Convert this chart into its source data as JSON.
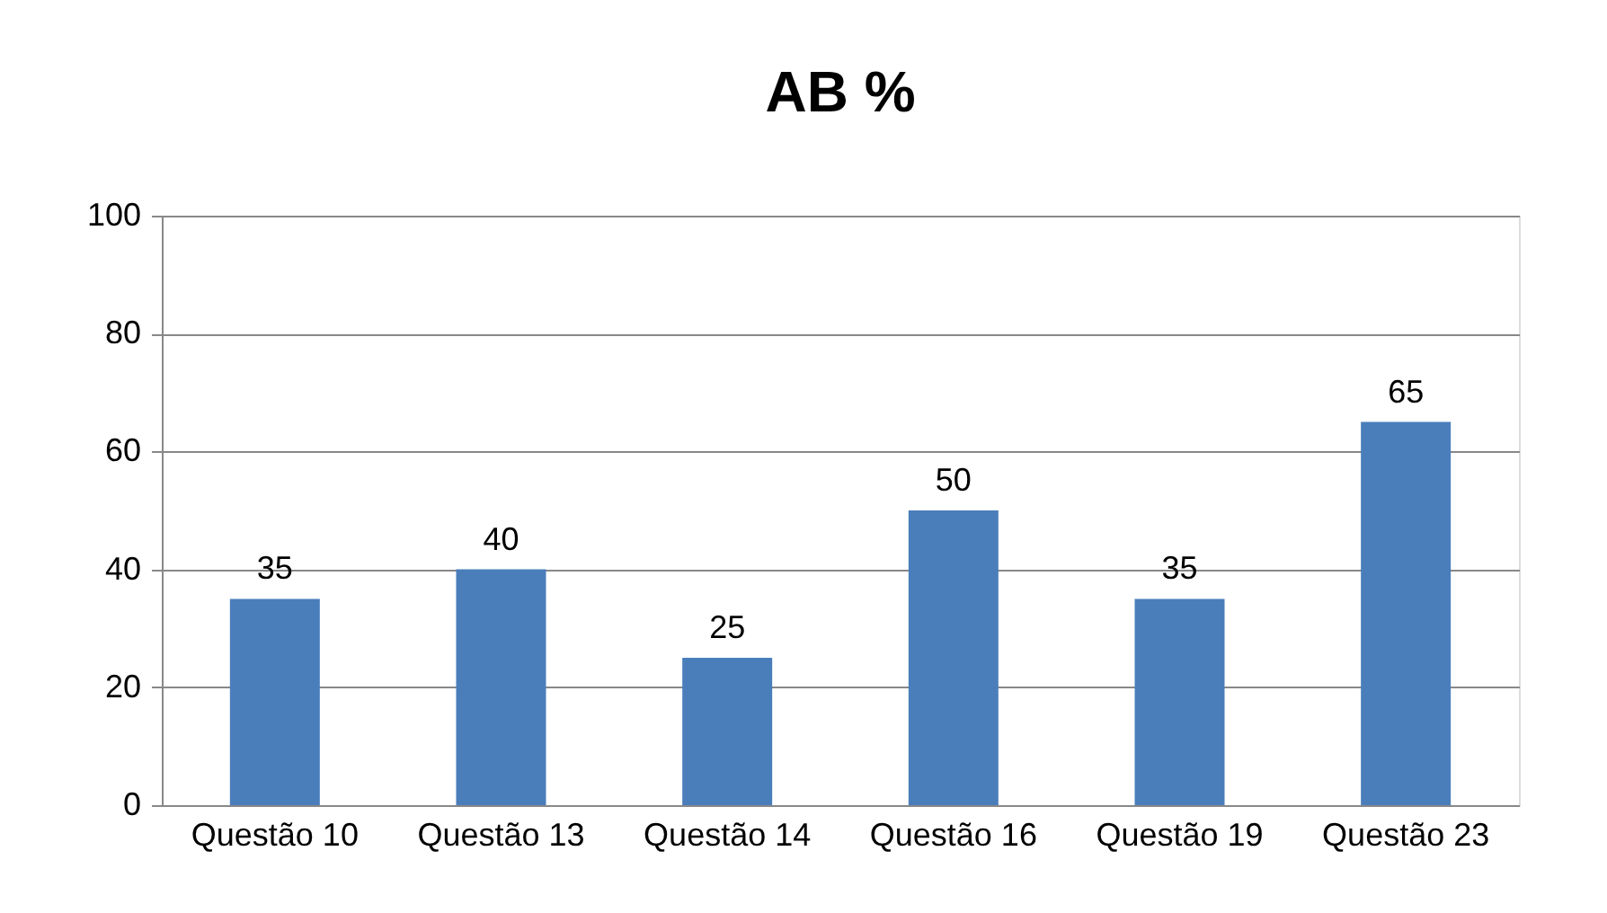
{
  "chart_data": {
    "type": "bar",
    "title": "AB %",
    "categories": [
      "Questão 10",
      "Questão 13",
      "Questão 14",
      "Questão 16",
      "Questão 19",
      "Questão 23"
    ],
    "values": [
      35,
      40,
      25,
      50,
      35,
      65
    ],
    "color": "#4a7ebb",
    "ylim": [
      0,
      100
    ],
    "yticks": [
      0,
      20,
      40,
      60,
      80,
      100
    ],
    "grid": "y",
    "data_labels": true
  }
}
